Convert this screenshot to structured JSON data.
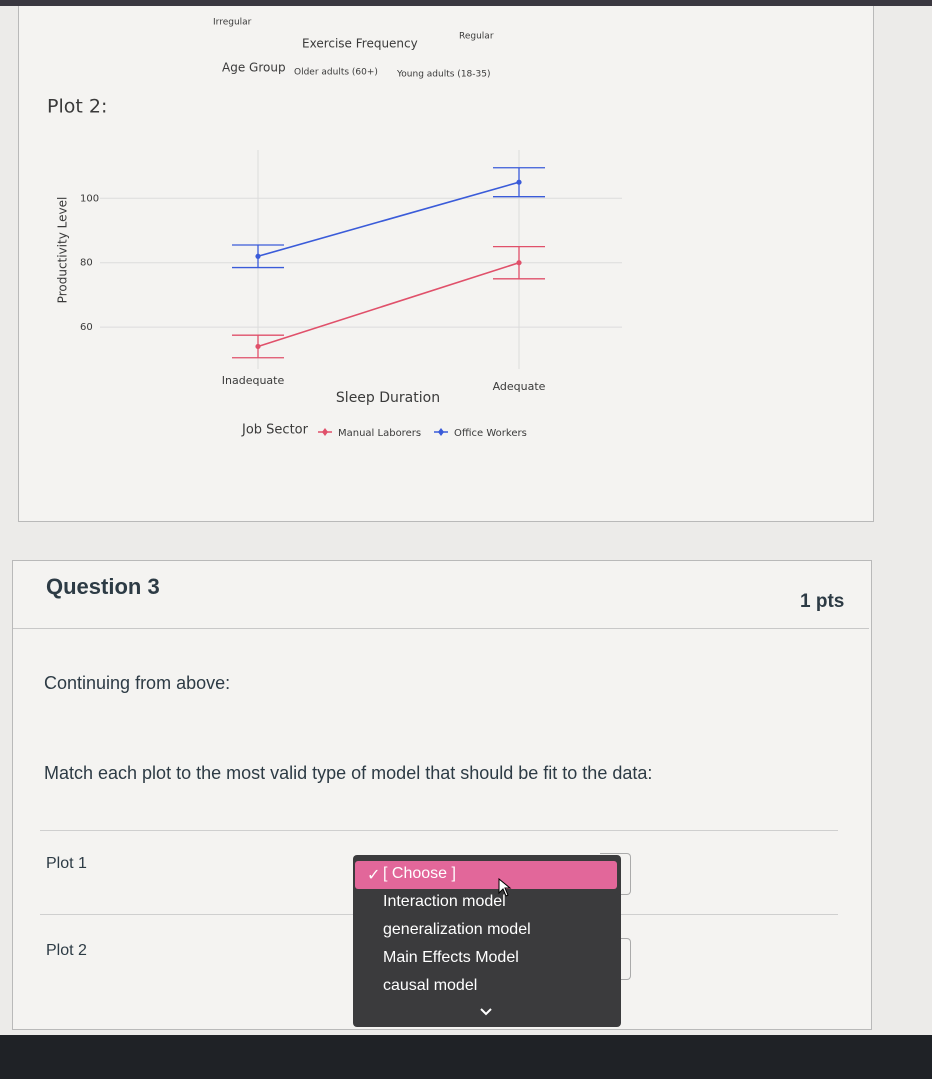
{
  "top_plot": {
    "x_labels": [
      "Irregular",
      "Regular"
    ],
    "x_title": "Exercise Frequency",
    "legend_title": "Age Group",
    "legend": [
      "Older adults (60+)",
      "Young adults (18-35)"
    ]
  },
  "plot2": {
    "label": "Plot 2:",
    "chart": {
      "type": "line",
      "x_title": "Sleep Duration",
      "y_title": "Productivity Level",
      "categories": [
        "Inadequate",
        "Adequate"
      ],
      "ylim": [
        47,
        115
      ],
      "yticks": [
        60,
        80,
        100
      ],
      "grid": true,
      "legend_title": "Job Sector",
      "series": [
        {
          "name": "Manual Laborers",
          "color": "#e0506a",
          "values": [
            54,
            80
          ],
          "errors": [
            3.5,
            5
          ]
        },
        {
          "name": "Office Workers",
          "color": "#3a5bd9",
          "values": [
            82,
            105
          ],
          "errors": [
            3.5,
            4.5
          ]
        }
      ]
    }
  },
  "question": {
    "title": "Question 3",
    "points": "1 pts",
    "intro": "Continuing from above:",
    "prompt": "Match each plot to the most valid type of model that should be fit to the data:",
    "matches": [
      "Plot 1",
      "Plot 2"
    ],
    "options": [
      "[ Choose ]",
      "Interaction model",
      "generalization model",
      "Main Effects Model",
      "causal model"
    ]
  }
}
